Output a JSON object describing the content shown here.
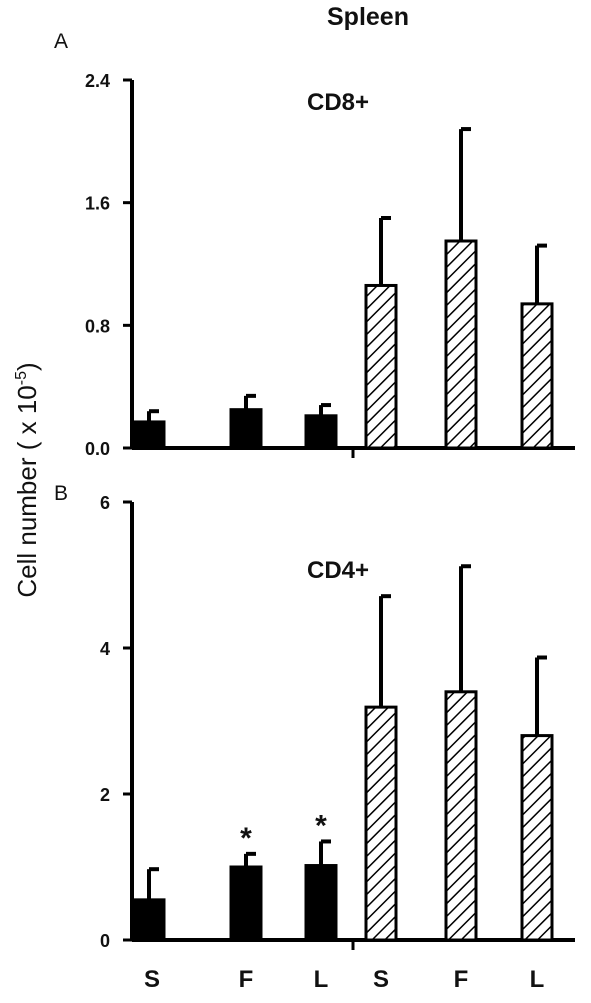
{
  "figure": {
    "title": "Spleen",
    "ylabel_main": "Cell number ( x 10",
    "ylabel_exp": "-5",
    "ylabel_close": ")",
    "xticklabels": [
      "S",
      "F",
      "L",
      "S",
      "F",
      "L"
    ]
  },
  "colors": {
    "solid": "#000000",
    "hatch": "#000000",
    "fill_open": "#ffffff"
  },
  "chart_data": [
    {
      "type": "bar",
      "panel_label": "A",
      "title": "CD8+",
      "xlabel": "",
      "ylabel": "Cell number ( x 10-5)",
      "categories": [
        "S",
        "F",
        "L",
        "S",
        "F",
        "L"
      ],
      "ylim": [
        0,
        2.4
      ],
      "yticks": [
        0,
        0.8,
        1.6,
        2.4
      ],
      "ytick_labels": [
        "0.0",
        "0.8",
        "1.6",
        "2.4"
      ],
      "grid": false,
      "bar_styles": [
        "solid",
        "solid",
        "solid",
        "hatched",
        "hatched",
        "hatched"
      ],
      "values": [
        0.17,
        0.25,
        0.21,
        1.06,
        1.35,
        0.94
      ],
      "errors": [
        0.07,
        0.09,
        0.07,
        0.44,
        0.73,
        0.38
      ],
      "annotations": [
        "",
        "",
        "",
        "",
        "",
        ""
      ]
    },
    {
      "type": "bar",
      "panel_label": "B",
      "title": "CD4+",
      "xlabel": "",
      "ylabel": "Cell number ( x 10-5)",
      "categories": [
        "S",
        "F",
        "L",
        "S",
        "F",
        "L"
      ],
      "ylim": [
        0,
        6
      ],
      "yticks": [
        0,
        2,
        4,
        6
      ],
      "ytick_labels": [
        "0",
        "2",
        "4",
        "6"
      ],
      "grid": false,
      "bar_styles": [
        "solid",
        "solid",
        "solid",
        "hatched",
        "hatched",
        "hatched"
      ],
      "values": [
        0.55,
        1.0,
        1.02,
        3.19,
        3.4,
        2.8
      ],
      "errors": [
        0.42,
        0.18,
        0.33,
        1.52,
        1.72,
        1.07
      ],
      "annotations": [
        "",
        "*",
        "*",
        "",
        "",
        ""
      ]
    }
  ]
}
